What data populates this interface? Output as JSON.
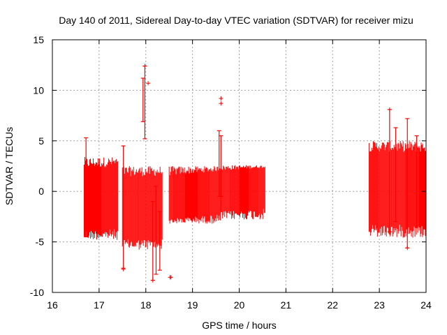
{
  "chart_data": {
    "type": "scatter",
    "title": "Day 140 of 2011, Sidereal Day-to-day VTEC variation (SDTVAR) for receiver mizu",
    "xlabel": "GPS time / hours",
    "ylabel": "SDTVAR / TECUs",
    "xlim": [
      16,
      24
    ],
    "ylim": [
      -10,
      15
    ],
    "x_ticks": [
      "16",
      "17",
      "18",
      "19",
      "20",
      "21",
      "22",
      "23",
      "24"
    ],
    "y_ticks": [
      "-10",
      "-5",
      "0",
      "5",
      "10",
      "15"
    ],
    "grid": true,
    "series_color": "#ff0000",
    "segments": [
      {
        "name": "block-1",
        "x_start": 16.68,
        "x_end": 17.4,
        "y_low": -4.8,
        "y_high": 3.4,
        "y_mid_start": -1.0,
        "y_mid_end": -0.5
      },
      {
        "name": "block-2",
        "x_start": 17.5,
        "x_end": 18.35,
        "y_low": -5.8,
        "y_high": 2.5,
        "y_mid_start": -1.5,
        "y_mid_end": -1.5
      },
      {
        "name": "block-3",
        "x_start": 18.5,
        "x_end": 19.6,
        "y_low": -3.2,
        "y_high": 2.5,
        "y_mid_start": -1.2,
        "y_mid_end": 0.5
      },
      {
        "name": "block-4",
        "x_start": 19.6,
        "x_end": 20.55,
        "y_low": -2.8,
        "y_high": 2.6,
        "y_mid_start": 0.5,
        "y_mid_end": 1.5
      },
      {
        "name": "block-5",
        "x_start": 22.78,
        "x_end": 24.0,
        "y_low": -4.6,
        "y_high": 5.0,
        "y_mid_start": 0.8,
        "y_mid_end": 0.5
      }
    ],
    "spikes": [
      {
        "x": 16.72,
        "y_low": -4.5,
        "y_high": 5.3
      },
      {
        "x": 17.52,
        "y_low": -7.6,
        "y_high": 4.5
      },
      {
        "x": 17.98,
        "y_low": 5.2,
        "y_high": 12.4
      },
      {
        "x": 17.94,
        "y_low": 6.9,
        "y_high": 11.2
      },
      {
        "x": 18.15,
        "y_low": -8.8,
        "y_high": -1.0
      },
      {
        "x": 18.22,
        "y_low": -8.2,
        "y_high": 0.5
      },
      {
        "x": 18.3,
        "y_low": -7.8,
        "y_high": -2.0
      },
      {
        "x": 19.57,
        "y_low": -0.5,
        "y_high": 6.0
      },
      {
        "x": 19.61,
        "y_low": -0.5,
        "y_high": 5.5
      },
      {
        "x": 23.22,
        "y_low": -4.0,
        "y_high": 8.1
      },
      {
        "x": 23.35,
        "y_low": -3.0,
        "y_high": 6.3
      },
      {
        "x": 23.6,
        "y_low": -5.6,
        "y_high": 7.2
      },
      {
        "x": 23.8,
        "y_low": -3.5,
        "y_high": 5.5
      }
    ],
    "points": [
      {
        "x": 18.05,
        "y": 10.7
      },
      {
        "x": 19.61,
        "y": 9.2
      },
      {
        "x": 19.61,
        "y": 8.7
      },
      {
        "x": 18.52,
        "y": -8.5
      },
      {
        "x": 18.54,
        "y": -8.5
      },
      {
        "x": 17.52,
        "y": -7.7
      },
      {
        "x": 17.98,
        "y": 12.4
      },
      {
        "x": 23.22,
        "y": 8.1
      },
      {
        "x": 23.6,
        "y": -5.6
      },
      {
        "x": 18.15,
        "y": -8.8
      }
    ]
  }
}
